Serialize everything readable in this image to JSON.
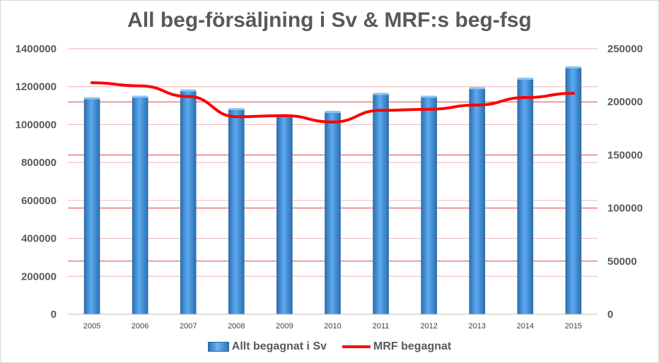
{
  "chart_data": {
    "type": "bar+line",
    "title": "All beg-försäljning i Sv & MRF:s beg-fsg",
    "categories": [
      "2005",
      "2006",
      "2007",
      "2008",
      "2009",
      "2010",
      "2011",
      "2012",
      "2013",
      "2014",
      "2015"
    ],
    "series": [
      {
        "name": "Allt begagnat i Sv",
        "type": "bar",
        "axis": "left",
        "color": "#3a8dde",
        "values": [
          1137000,
          1145000,
          1178000,
          1080000,
          1047000,
          1065000,
          1160000,
          1145000,
          1190000,
          1240000,
          1300000
        ]
      },
      {
        "name": "MRF begagnat",
        "type": "line",
        "axis": "right",
        "color": "#ff0000",
        "values": [
          218000,
          215000,
          205000,
          186000,
          187000,
          181000,
          192000,
          193000,
          197000,
          204000,
          208000
        ]
      }
    ],
    "left_axis": {
      "ylim": [
        0,
        1400000
      ],
      "ticks": [
        "0",
        "200000",
        "400000",
        "600000",
        "800000",
        "1000000",
        "1200000",
        "1400000"
      ]
    },
    "right_axis": {
      "ylim": [
        0,
        250000
      ],
      "ticks": [
        "0",
        "50000",
        "100000",
        "150000",
        "200000",
        "250000"
      ]
    },
    "grid_color": "#e04040",
    "legend": "bottom"
  }
}
